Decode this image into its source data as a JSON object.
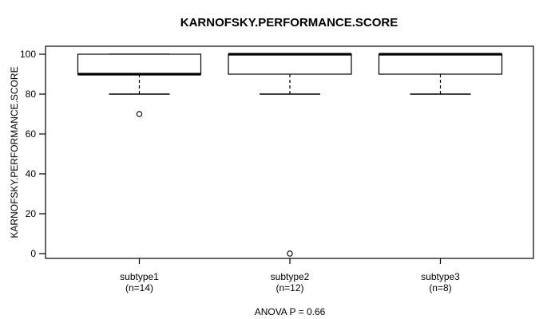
{
  "title": "KARNOFSKY.PERFORMANCE.SCORE",
  "y_axis": {
    "label": "KARNOFSKY.PERFORMANCE.SCORE",
    "ticks": [
      0,
      20,
      40,
      60,
      80,
      100
    ]
  },
  "footer": {
    "anova_label": "ANOVA P = 0.66"
  },
  "colors": {
    "stroke": "#000000",
    "background": "#ffffff",
    "box_fill": "#ffffff"
  },
  "chart_data": {
    "type": "boxplot",
    "title": "KARNOFSKY.PERFORMANCE.SCORE",
    "xlabel": "",
    "ylabel": "KARNOFSKY.PERFORMANCE.SCORE",
    "ylim": [
      0,
      100
    ],
    "yticks": [
      0,
      20,
      40,
      60,
      80,
      100
    ],
    "grid": false,
    "annotation": "ANOVA P = 0.66",
    "groups": [
      {
        "label": "subtype1",
        "n_label": "(n=14)",
        "n": 14,
        "q1": 90,
        "median": 90,
        "q3": 100,
        "whisker_low": 80,
        "whisker_high": 100,
        "outliers": [
          70
        ]
      },
      {
        "label": "subtype2",
        "n_label": "(n=12)",
        "n": 12,
        "q1": 90,
        "median": 100,
        "q3": 100,
        "whisker_low": 80,
        "whisker_high": 100,
        "outliers": [
          0
        ]
      },
      {
        "label": "subtype3",
        "n_label": "(n=8)",
        "n": 8,
        "q1": 90,
        "median": 100,
        "q3": 100,
        "whisker_low": 80,
        "whisker_high": 100,
        "outliers": []
      }
    ]
  }
}
